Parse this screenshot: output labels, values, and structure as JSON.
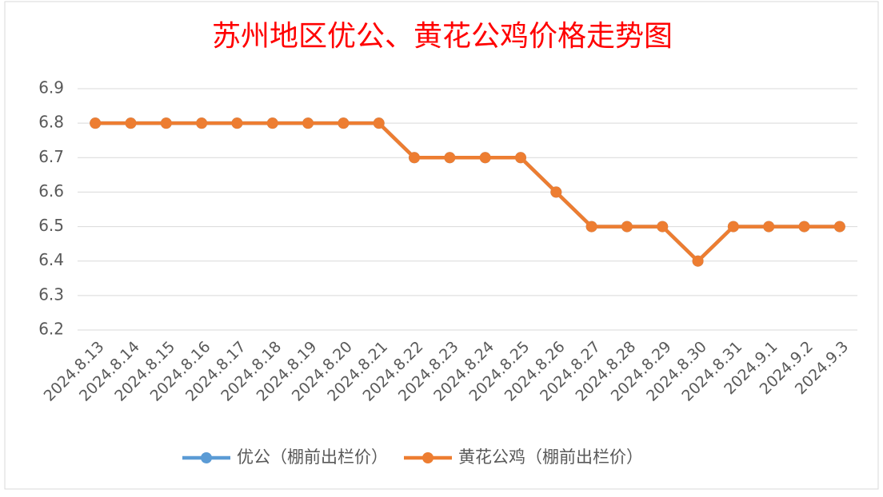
{
  "chart_data": {
    "type": "line",
    "title": "苏州地区优公、黄花公鸡价格走势图",
    "categories": [
      "2024.8.13",
      "2024.8.14",
      "2024.8.15",
      "2024.8.16",
      "2024.8.17",
      "2024.8.18",
      "2024.8.19",
      "2024.8.20",
      "2024.8.21",
      "2024.8.22",
      "2024.8.23",
      "2024.8.24",
      "2024.8.25",
      "2024.8.26",
      "2024.8.27",
      "2024.8.28",
      "2024.8.29",
      "2024.8.30",
      "2024.8.31",
      "2024.9.1",
      "2024.9.2",
      "2024.9.3"
    ],
    "series": [
      {
        "name": "优公（棚前出栏价）",
        "color": "#5b9bd5",
        "values": [
          6.8,
          6.8,
          6.8,
          6.8,
          6.8,
          6.8,
          6.8,
          6.8,
          6.8,
          6.7,
          6.7,
          6.7,
          6.7,
          6.6,
          6.5,
          6.5,
          6.5,
          6.4,
          6.5,
          6.5,
          6.5,
          6.5
        ]
      },
      {
        "name": "黄花公鸡（棚前出栏价）",
        "color": "#ed7d31",
        "values": [
          6.8,
          6.8,
          6.8,
          6.8,
          6.8,
          6.8,
          6.8,
          6.8,
          6.8,
          6.7,
          6.7,
          6.7,
          6.7,
          6.6,
          6.5,
          6.5,
          6.5,
          6.4,
          6.5,
          6.5,
          6.5,
          6.5
        ]
      }
    ],
    "ylim": [
      6.2,
      6.9
    ],
    "yticks": [
      6.2,
      6.3,
      6.4,
      6.5,
      6.6,
      6.7,
      6.8,
      6.9
    ],
    "grid": true,
    "legend": "bottom"
  }
}
